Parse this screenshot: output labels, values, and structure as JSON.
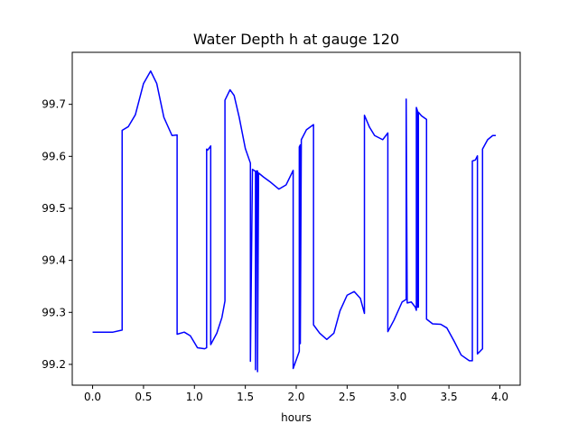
{
  "chart_data": {
    "type": "line",
    "title": "Water Depth h at gauge 120",
    "xlabel": "hours",
    "ylabel": "",
    "xlim": [
      -0.2,
      4.2
    ],
    "ylim": [
      99.16,
      99.8
    ],
    "xticks": [
      0.0,
      0.5,
      1.0,
      1.5,
      2.0,
      2.5,
      3.0,
      3.5,
      4.0
    ],
    "xtick_labels": [
      "0.0",
      "0.5",
      "1.0",
      "1.5",
      "2.0",
      "2.5",
      "3.0",
      "3.5",
      "4.0"
    ],
    "yticks": [
      99.2,
      99.3,
      99.4,
      99.5,
      99.6,
      99.7
    ],
    "ytick_labels": [
      "99.2",
      "99.3",
      "99.4",
      "99.5",
      "99.6",
      "99.7"
    ],
    "grid": false,
    "line_color": "#0000ff",
    "series": [
      {
        "name": "",
        "points": [
          [
            0.0,
            99.262
          ],
          [
            0.2,
            99.262
          ],
          [
            0.29,
            99.266
          ],
          [
            0.29,
            99.65
          ],
          [
            0.35,
            99.657
          ],
          [
            0.42,
            99.68
          ],
          [
            0.5,
            99.74
          ],
          [
            0.57,
            99.764
          ],
          [
            0.63,
            99.74
          ],
          [
            0.7,
            99.675
          ],
          [
            0.78,
            99.64
          ],
          [
            0.83,
            99.641
          ],
          [
            0.83,
            99.258
          ],
          [
            0.9,
            99.262
          ],
          [
            0.96,
            99.255
          ],
          [
            1.03,
            99.232
          ],
          [
            1.1,
            99.23
          ],
          [
            1.12,
            99.232
          ],
          [
            1.12,
            99.614
          ],
          [
            1.13,
            99.612
          ],
          [
            1.16,
            99.62
          ],
          [
            1.16,
            99.238
          ],
          [
            1.22,
            99.26
          ],
          [
            1.27,
            99.29
          ],
          [
            1.3,
            99.322
          ],
          [
            1.3,
            99.708
          ],
          [
            1.35,
            99.728
          ],
          [
            1.39,
            99.717
          ],
          [
            1.44,
            99.675
          ],
          [
            1.5,
            99.615
          ],
          [
            1.55,
            99.587
          ],
          [
            1.55,
            99.206
          ],
          [
            1.57,
            99.575
          ],
          [
            1.6,
            99.571
          ],
          [
            1.6,
            99.19
          ],
          [
            1.61,
            99.572
          ],
          [
            1.62,
            99.572
          ],
          [
            1.62,
            99.186
          ],
          [
            1.63,
            99.568
          ],
          [
            1.68,
            99.56
          ],
          [
            1.75,
            99.55
          ],
          [
            1.83,
            99.537
          ],
          [
            1.9,
            99.545
          ],
          [
            1.97,
            99.573
          ],
          [
            1.97,
            99.192
          ],
          [
            2.03,
            99.225
          ],
          [
            2.03,
            99.618
          ],
          [
            2.04,
            99.622
          ],
          [
            2.04,
            99.24
          ],
          [
            2.05,
            99.632
          ],
          [
            2.1,
            99.651
          ],
          [
            2.17,
            99.661
          ],
          [
            2.17,
            99.276
          ],
          [
            2.23,
            99.26
          ],
          [
            2.3,
            99.248
          ],
          [
            2.37,
            99.26
          ],
          [
            2.43,
            99.303
          ],
          [
            2.5,
            99.333
          ],
          [
            2.57,
            99.34
          ],
          [
            2.63,
            99.327
          ],
          [
            2.67,
            99.298
          ],
          [
            2.67,
            99.679
          ],
          [
            2.72,
            99.656
          ],
          [
            2.77,
            99.64
          ],
          [
            2.85,
            99.632
          ],
          [
            2.9,
            99.645
          ],
          [
            2.9,
            99.263
          ],
          [
            2.96,
            99.285
          ],
          [
            3.04,
            99.32
          ],
          [
            3.08,
            99.325
          ],
          [
            3.08,
            99.71
          ],
          [
            3.09,
            99.318
          ],
          [
            3.13,
            99.32
          ],
          [
            3.17,
            99.31
          ],
          [
            3.18,
            99.304
          ],
          [
            3.18,
            99.694
          ],
          [
            3.19,
            99.688
          ],
          [
            3.19,
            99.31
          ],
          [
            3.2,
            99.31
          ],
          [
            3.2,
            99.685
          ],
          [
            3.23,
            99.678
          ],
          [
            3.28,
            99.671
          ],
          [
            3.28,
            99.287
          ],
          [
            3.34,
            99.278
          ],
          [
            3.42,
            99.277
          ],
          [
            3.48,
            99.27
          ],
          [
            3.55,
            99.245
          ],
          [
            3.62,
            99.218
          ],
          [
            3.7,
            99.207
          ],
          [
            3.73,
            99.207
          ],
          [
            3.73,
            99.591
          ],
          [
            3.76,
            99.593
          ],
          [
            3.78,
            99.601
          ],
          [
            3.78,
            99.22
          ],
          [
            3.83,
            99.23
          ],
          [
            3.83,
            99.614
          ],
          [
            3.88,
            99.632
          ],
          [
            3.93,
            99.64
          ],
          [
            3.96,
            99.64
          ]
        ]
      }
    ]
  }
}
